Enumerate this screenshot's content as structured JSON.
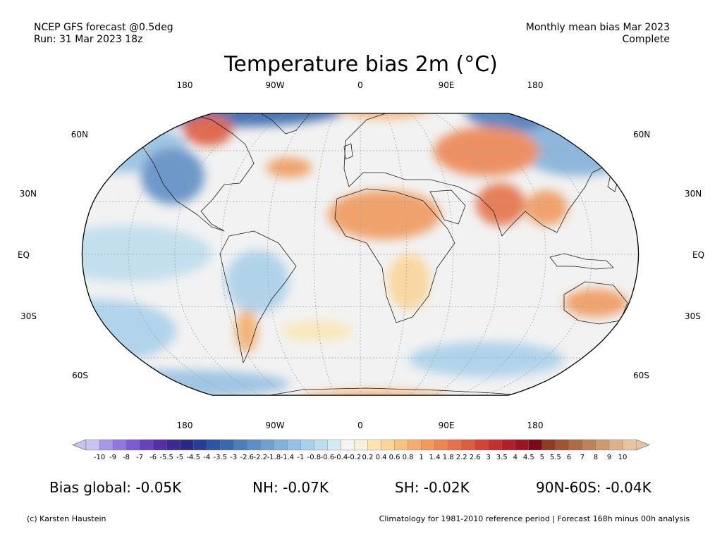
{
  "header": {
    "model": "NCEP GFS forecast @0.5deg",
    "run": "Run: 31 Mar 2023 18z",
    "period": "Monthly mean bias Mar 2023",
    "status": "Complete"
  },
  "title": "Temperature bias 2m (°C)",
  "map": {
    "projection": "robinson",
    "lon_labels": [
      "180",
      "90W",
      "0",
      "90E",
      "180"
    ],
    "lat_labels": [
      "60N",
      "30N",
      "EQ",
      "30S",
      "60S"
    ],
    "colors": {
      "ocean": "#f2f2f2",
      "land": "#f5f5f5",
      "coast": "#1a1a1a",
      "grid": "#a0a0a0"
    }
  },
  "colorbar": {
    "ticks": [
      "-10",
      "-9",
      "-8",
      "-7",
      "-6",
      "-5.5",
      "-5",
      "-4.5",
      "-4",
      "-3.5",
      "-3",
      "-2.6",
      "-2.2",
      "-1.8",
      "-1.4",
      "-1",
      "-0.8",
      "-0.6",
      "-0.4",
      "-0.2",
      "0.2",
      "0.4",
      "0.6",
      "0.8",
      "1",
      "1.4",
      "1.8",
      "2.2",
      "2.6",
      "3",
      "3.5",
      "4",
      "4.5",
      "5",
      "5.5",
      "6",
      "7",
      "8",
      "9",
      "10"
    ],
    "colors": [
      "#c9c3f0",
      "#a797e6",
      "#9076dd",
      "#7a5bd0",
      "#6842bd",
      "#552fa6",
      "#3c2a8e",
      "#2b2a86",
      "#283d94",
      "#2f54a0",
      "#3b68ad",
      "#4e7dba",
      "#5e8ec5",
      "#71a0cf",
      "#83b1d9",
      "#97c1e2",
      "#aad0ea",
      "#bedded",
      "#d4ebf5",
      "#f4f4f4",
      "#f7f1da",
      "#fbe6b3",
      "#fbd59a",
      "#f8c282",
      "#f4ad6e",
      "#f09a5e",
      "#ec8655",
      "#e5724a",
      "#dc5c40",
      "#d04537",
      "#c2302f",
      "#b1202a",
      "#9b1424",
      "#7a0b1b",
      "#8e3b27",
      "#9e5536",
      "#ad6c47",
      "#bc825a",
      "#cb9a73",
      "#dab28d",
      "#e6c3a3"
    ]
  },
  "stats": {
    "global": "Bias global: -0.05K",
    "nh": "NH: -0.07K",
    "sh": "SH: -0.02K",
    "polar": "90N-60S: -0.04K"
  },
  "footer": {
    "credit": "(c) Karsten Haustein",
    "note": "Climatology for 1981-2010 reference period | Forecast 168h minus 00h analysis"
  }
}
